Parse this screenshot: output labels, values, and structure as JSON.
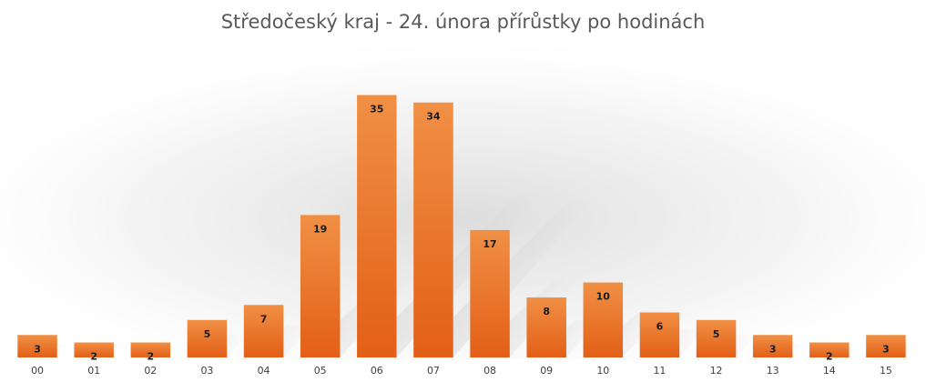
{
  "chart_data": {
    "type": "bar",
    "title": "Středočeský kraj - 24. února přírůstky po hodinách",
    "xlabel": "",
    "ylabel": "",
    "categories": [
      "00",
      "01",
      "02",
      "03",
      "04",
      "05",
      "06",
      "07",
      "08",
      "09",
      "10",
      "11",
      "12",
      "13",
      "14",
      "15"
    ],
    "values": [
      3,
      2,
      2,
      5,
      7,
      19,
      35,
      34,
      17,
      8,
      10,
      6,
      5,
      3,
      2,
      3
    ],
    "ylim": [
      0,
      37
    ],
    "grid": false,
    "legend": "none",
    "data_labels": true,
    "bar_color": "#e96b22",
    "bar_color_light": "#f09045"
  }
}
